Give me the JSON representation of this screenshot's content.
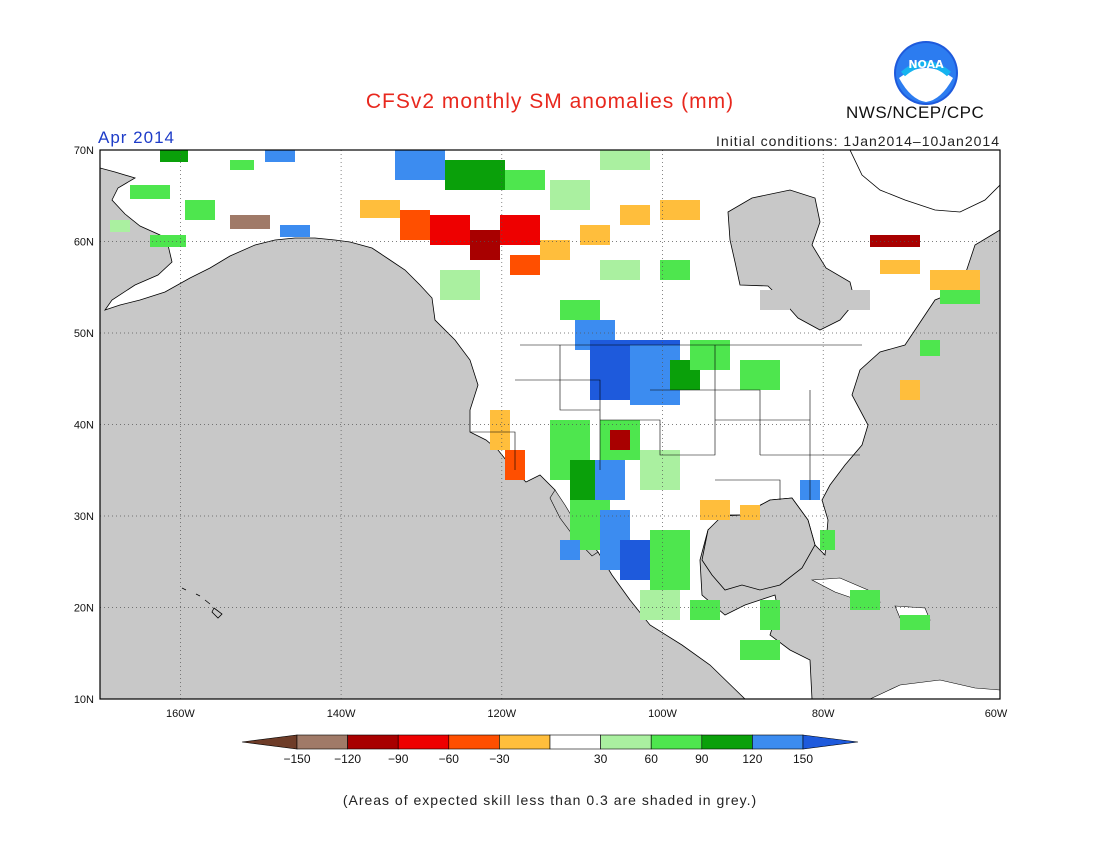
{
  "title": "CFSv2 monthly SM anomalies (mm)",
  "period": "Apr 2014",
  "initial_conditions": "Initial conditions: 1Jan2014–10Jan2014",
  "agency": "NWS/NCEP/CPC",
  "logo_text": "NOAA",
  "footer": "(Areas of expected skill less than 0.3 are shaded in grey.)",
  "map": {
    "lon_range": [
      -172,
      -60
    ],
    "lat_range": [
      10,
      70
    ],
    "lat_labels": [
      "10N",
      "20N",
      "30N",
      "40N",
      "50N",
      "60N",
      "70N"
    ],
    "lon_labels": [
      "160W",
      "140W",
      "120W",
      "100W",
      "80W",
      "60W"
    ],
    "ocean_color": "#c8c8c8",
    "land_color": "#ffffff",
    "grid": true
  },
  "legend": {
    "labels": [
      "-150",
      "-120",
      "-90",
      "-60",
      "-30",
      "30",
      "60",
      "90",
      "120",
      "150"
    ],
    "colors": [
      "#6e3c28",
      "#a07a68",
      "#a80000",
      "#ee0000",
      "#ff4f00",
      "#ffbe3c",
      "#ffffff",
      "#aaf0a0",
      "#4ee64e",
      "#0aa00a",
      "#3c8cf0",
      "#1e5adc"
    ]
  }
}
